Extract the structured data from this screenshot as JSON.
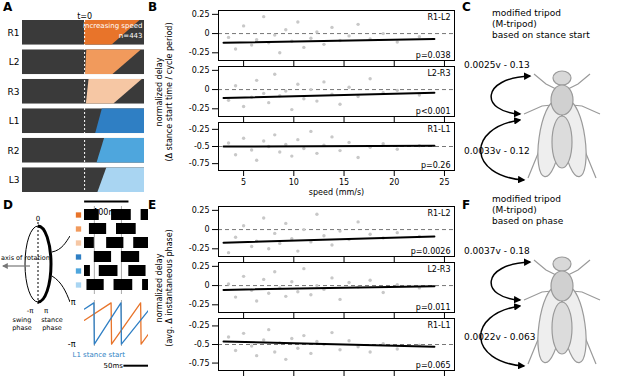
{
  "panels": {
    "A": {
      "label": "A",
      "t0": 0,
      "t0_label": "t=0",
      "speed_label": "increasing speed",
      "n": 443,
      "n_label": "n=443",
      "xlim": [
        -140,
        135
      ],
      "scale_bar": {
        "value": 100,
        "label": "100ms"
      },
      "legs": [
        {
          "name": "R1",
          "color": "#e8742a",
          "start": [
            0,
            0
          ],
          "end": [
            125,
            62
          ]
        },
        {
          "name": "L2",
          "color": "#f19a5c",
          "start": [
            5,
            2
          ],
          "end": [
            128,
            64
          ]
        },
        {
          "name": "R3",
          "color": "#f6c7a4",
          "start": [
            10,
            4
          ],
          "end": [
            130,
            66
          ]
        },
        {
          "name": "L1",
          "color": "#2f7fc4",
          "start": [
            40,
            25
          ],
          "end": [
            135,
            135
          ]
        },
        {
          "name": "R2",
          "color": "#4ea6dd",
          "start": [
            45,
            28
          ],
          "end": [
            135,
            135
          ]
        },
        {
          "name": "L3",
          "color": "#a9d5f2",
          "start": [
            50,
            30
          ],
          "end": [
            135,
            135
          ]
        }
      ]
    },
    "B": {
      "label": "B",
      "ylabel": [
        "normalized delay",
        "(Δ stance start time / cycle period)"
      ],
      "xlabel": "speed (mm/s)"
    },
    "C": {
      "label": "C",
      "title": [
        "modified tripod",
        "(M-tripod)",
        "based on stance start"
      ],
      "equations": [
        "0.0025v - 0.13",
        "0.0033v - 0.12"
      ]
    },
    "D": {
      "label": "D",
      "axis_label": "axis of rotation",
      "zero_label": "0",
      "minus_pi": "-π",
      "pi": "π",
      "swing": [
        "swing",
        "phase"
      ],
      "stance": [
        "stance",
        "phase"
      ],
      "raster": {
        "xlim": [
          0,
          130
        ],
        "rows": [
          {
            "color": "#e8742a",
            "bars": [
              [
                0,
                30
              ],
              [
                55,
                95
              ],
              [
                115,
                130
              ]
            ]
          },
          {
            "color": "#f19a5c",
            "bars": [
              [
                10,
                45
              ],
              [
                65,
                105
              ]
            ]
          },
          {
            "color": "#f6c7a4",
            "bars": [
              [
                0,
                20
              ],
              [
                45,
                80
              ],
              [
                100,
                130
              ]
            ]
          },
          {
            "color": "#2f7fc4",
            "bars": [
              [
                20,
                55
              ],
              [
                75,
                112
              ]
            ]
          },
          {
            "color": "#4ea6dd",
            "bars": [
              [
                0,
                12
              ],
              [
                30,
                68
              ],
              [
                90,
                125
              ]
            ]
          },
          {
            "color": "#a9d5f2",
            "bars": [
              [
                5,
                40
              ],
              [
                60,
                98
              ],
              [
                118,
                130
              ]
            ]
          }
        ]
      },
      "stance_starts": [
        20,
        75
      ],
      "phase": {
        "ylim": [
          -3.5,
          3.5
        ],
        "yticks": [
          {
            "value": 3.14,
            "label": "π"
          },
          {
            "value": -3.14,
            "label": "-π"
          }
        ],
        "series": [
          {
            "color": "#e8742a",
            "x": [
              0,
              54,
              55,
              114,
              115,
              130
            ],
            "y": [
              0.5,
              3.14,
              -3.14,
              3.14,
              -3.14,
              -1.6
            ]
          },
          {
            "color": "#2f7fc4",
            "x": [
              0,
              19,
              20,
              74,
              75,
              130
            ],
            "y": [
              2.2,
              3.14,
              -3.14,
              3.14,
              -3.14,
              2.0
            ]
          }
        ]
      },
      "stance_label": "L1 stance start",
      "scale_bar": {
        "value": 50,
        "label": "50ms"
      }
    },
    "E": {
      "label": "E",
      "ylabel": [
        "normalized delay",
        "(avg. Δ instantaneous phase)"
      ]
    },
    "F": {
      "label": "F",
      "title": [
        "modified tripod",
        "(M-tripod)",
        "based on phase"
      ],
      "equations": [
        "0.0037v - 0.18",
        "0.0022v - 0.063"
      ]
    }
  },
  "chart_data": [
    {
      "type": "scatter",
      "panel": "B",
      "title": "R1-L2",
      "annotation": "p=0.038",
      "color": "#c8c8c8",
      "x": [
        3.5,
        4.2,
        5,
        5.8,
        6.3,
        7,
        7.5,
        8.1,
        8.6,
        9.2,
        9.8,
        10.4,
        11,
        11.7,
        12.3,
        13,
        13.8,
        14.6,
        15.5,
        16.4,
        17.6,
        18.9,
        20.3,
        22.5
      ],
      "y": [
        -0.05,
        -0.2,
        0.1,
        -0.15,
        -0.08,
        0.22,
        -0.12,
        -0.02,
        -0.25,
        0.05,
        -0.1,
        0.15,
        -0.18,
        -0.06,
        0.02,
        -0.14,
        0.08,
        -0.09,
        -0.03,
        0.12,
        -0.07,
        0.0,
        -0.11,
        -0.04
      ],
      "fit": {
        "x": [
          3,
          24
        ],
        "y": [
          -0.12,
          -0.07
        ]
      },
      "reference_line": 0,
      "xlim": [
        2.5,
        26
      ],
      "xticks": [
        5,
        10,
        15,
        20,
        25
      ],
      "ylim": [
        -0.35,
        0.3
      ],
      "yticks": [
        0.25,
        0,
        -0.25
      ],
      "tick_labels": "y"
    },
    {
      "type": "scatter",
      "panel": "B",
      "title": "L2-R3",
      "annotation": "p<0.001",
      "color": "#c8c8c8",
      "x": [
        3.5,
        4.2,
        5,
        5.8,
        6.3,
        7,
        7.5,
        8.1,
        8.6,
        9.2,
        9.8,
        10.4,
        11,
        11.7,
        12.3,
        13,
        13.8,
        14.6,
        15.5,
        16.4,
        17.6,
        18.9,
        20.3,
        22.5
      ],
      "y": [
        -0.14,
        0.05,
        -0.22,
        -0.1,
        0.12,
        -0.05,
        -0.17,
        0.2,
        -0.08,
        -0.02,
        -0.26,
        0.07,
        -0.12,
        0.0,
        -0.15,
        0.1,
        -0.06,
        -0.19,
        0.03,
        -0.09,
        0.14,
        -0.04,
        -0.01,
        -0.07
      ],
      "fit": {
        "x": [
          3,
          24
        ],
        "y": [
          -0.11,
          -0.04
        ]
      },
      "reference_line": 0,
      "xlim": [
        2.5,
        26
      ],
      "xticks": [
        5,
        10,
        15,
        20,
        25
      ],
      "ylim": [
        -0.35,
        0.3
      ],
      "yticks": [
        0.25,
        0,
        -0.25
      ],
      "tick_labels": "y"
    },
    {
      "type": "scatter",
      "panel": "B",
      "title": "R1-L1",
      "annotation": "p=0.26",
      "color": "#c8c8c8",
      "x": [
        3.5,
        4.2,
        5,
        5.8,
        6.3,
        7,
        7.5,
        8.1,
        8.6,
        9.2,
        9.8,
        10.4,
        11,
        11.7,
        12.3,
        13,
        13.8,
        14.6,
        15.5,
        16.4,
        17.6,
        18.9,
        20.3,
        22.5
      ],
      "y": [
        -0.45,
        -0.62,
        -0.38,
        -0.55,
        -0.7,
        -0.42,
        -0.5,
        -0.33,
        -0.58,
        -0.47,
        -0.64,
        -0.4,
        -0.53,
        -0.28,
        -0.6,
        -0.48,
        -0.36,
        -0.56,
        -0.44,
        -0.66,
        -0.51,
        -0.46,
        -0.54,
        -0.49
      ],
      "fit": {
        "x": [
          3,
          24
        ],
        "y": [
          -0.5,
          -0.49
        ]
      },
      "reference_line": -0.5,
      "xlim": [
        2.5,
        26
      ],
      "xticks": [
        5,
        10,
        15,
        20,
        25
      ],
      "ylim": [
        -0.85,
        -0.15
      ],
      "yticks": [
        -0.25,
        -0.5,
        -0.75
      ]
    },
    {
      "type": "scatter",
      "panel": "E",
      "title": "R1-L2",
      "annotation": "p=0.0026",
      "color": "#c8c8c8",
      "x": [
        3.5,
        4.2,
        5,
        5.8,
        6.3,
        7,
        7.5,
        8.1,
        8.6,
        9.2,
        9.8,
        10.4,
        11,
        11.7,
        12.3,
        13,
        13.8,
        14.6,
        15.5,
        16.4,
        17.6,
        18.9,
        20.3,
        22.5
      ],
      "y": [
        -0.3,
        -0.1,
        0.05,
        -0.22,
        -0.15,
        0.15,
        -0.25,
        -0.05,
        -0.18,
        0.08,
        -0.12,
        -0.28,
        0.0,
        -0.16,
        0.2,
        -0.08,
        -0.2,
        -0.02,
        -0.13,
        0.1,
        -0.06,
        -0.11,
        -0.04,
        -0.09
      ],
      "fit": {
        "x": [
          3,
          24
        ],
        "y": [
          -0.17,
          -0.09
        ]
      },
      "reference_line": 0,
      "xlim": [
        2.5,
        26
      ],
      "xticks": [
        5,
        10,
        15,
        20,
        25
      ],
      "ylim": [
        -0.35,
        0.3
      ],
      "yticks": [
        0.25,
        0,
        -0.25
      ],
      "tick_labels": "y"
    },
    {
      "type": "scatter",
      "panel": "E",
      "title": "L2-R3",
      "annotation": "p=0.011",
      "color": "#c8c8c8",
      "x": [
        3.5,
        4.2,
        5,
        5.8,
        6.3,
        7,
        7.5,
        8.1,
        8.6,
        9.2,
        9.8,
        10.4,
        11,
        11.7,
        12.3,
        13,
        13.8,
        14.6,
        15.5,
        16.4,
        17.6,
        18.9,
        20.3,
        22.5
      ],
      "y": [
        0.02,
        -0.15,
        0.12,
        -0.06,
        -0.2,
        0.08,
        -0.1,
        0.18,
        -0.03,
        -0.14,
        0.05,
        -0.08,
        0.22,
        -0.12,
        0.0,
        -0.05,
        0.1,
        -0.18,
        0.04,
        -0.02,
        0.07,
        -0.09,
        0.01,
        -0.03
      ],
      "fit": {
        "x": [
          3,
          24
        ],
        "y": [
          -0.056,
          -0.01
        ]
      },
      "reference_line": 0,
      "xlim": [
        2.5,
        26
      ],
      "xticks": [
        5,
        10,
        15,
        20,
        25
      ],
      "ylim": [
        -0.35,
        0.3
      ],
      "yticks": [
        0.25,
        0,
        -0.25
      ],
      "tick_labels": "y"
    },
    {
      "type": "scatter",
      "panel": "E",
      "title": "R1-L1",
      "annotation": "p=0.065",
      "color": "#c8c8c8",
      "x": [
        3.5,
        4.2,
        5,
        5.8,
        6.3,
        7,
        7.5,
        8.1,
        8.6,
        9.2,
        9.8,
        10.4,
        11,
        11.7,
        12.3,
        13,
        13.8,
        14.6,
        15.5,
        16.4,
        17.6,
        18.9,
        20.3,
        22.5
      ],
      "y": [
        -0.4,
        -0.58,
        -0.35,
        -0.52,
        -0.65,
        -0.44,
        -0.3,
        -0.6,
        -0.48,
        -0.7,
        -0.42,
        -0.55,
        -0.38,
        -0.62,
        -0.46,
        -0.5,
        -0.34,
        -0.57,
        -0.45,
        -0.53,
        -0.6,
        -0.49,
        -0.56,
        -0.51
      ],
      "fit": {
        "x": [
          3,
          24
        ],
        "y": [
          -0.46,
          -0.53
        ]
      },
      "reference_line": -0.5,
      "xlim": [
        2.5,
        26
      ],
      "xticks": [
        5,
        10,
        15,
        20,
        25
      ],
      "ylim": [
        -0.85,
        -0.15
      ],
      "yticks": [
        -0.25,
        -0.5,
        -0.75
      ],
      "tick_labels": "y"
    }
  ]
}
